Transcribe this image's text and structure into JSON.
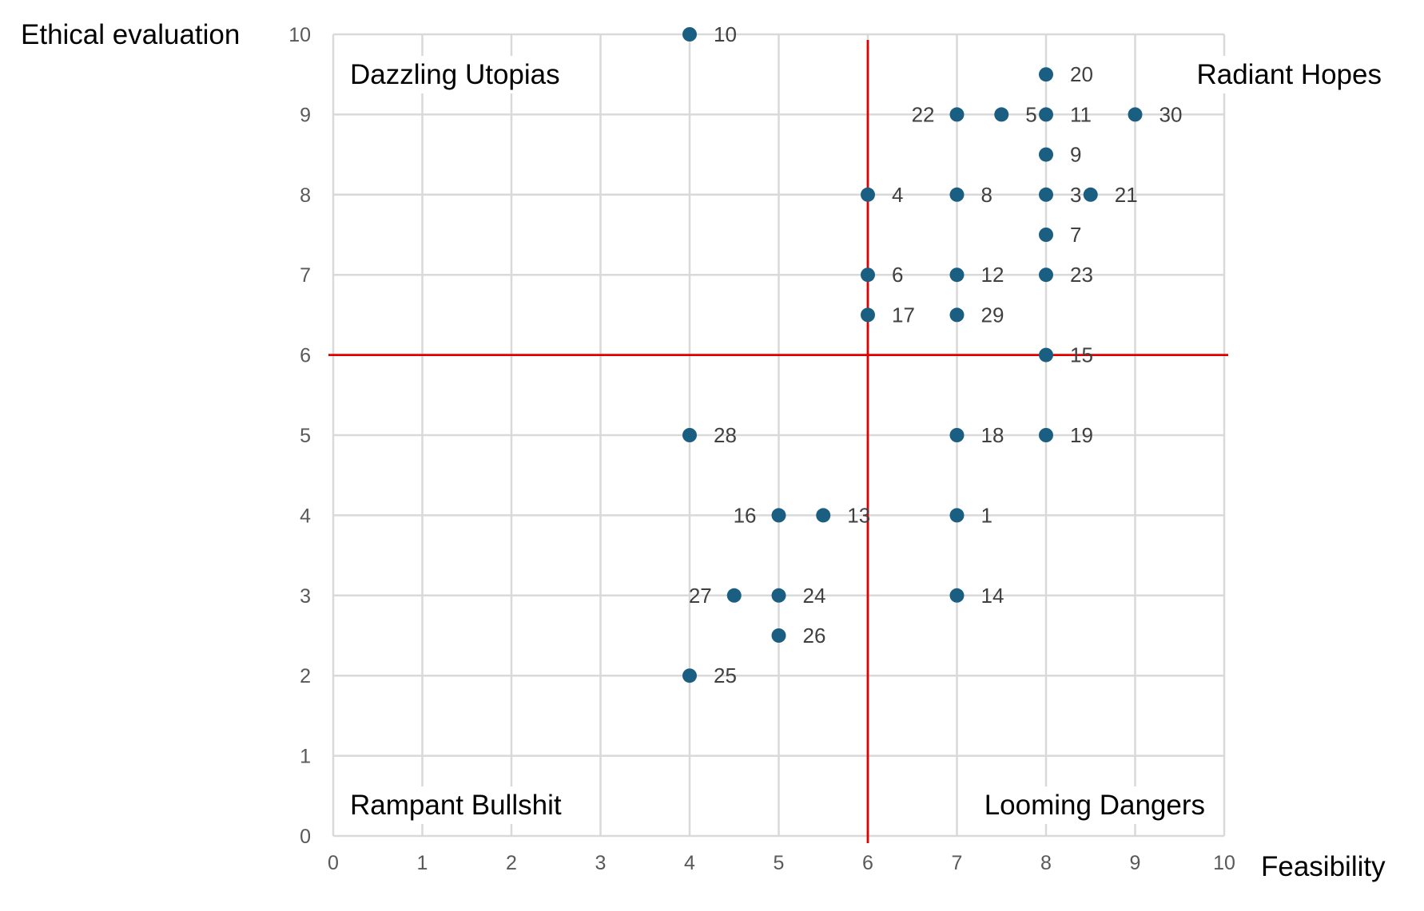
{
  "chart_data": {
    "type": "scatter",
    "xlabel": "Feasibility",
    "ylabel": "Ethical evaluation",
    "xlim": [
      0,
      10
    ],
    "ylim": [
      0,
      10
    ],
    "x_ticks": [
      "0",
      "1",
      "2",
      "3",
      "4",
      "5",
      "6",
      "7",
      "8",
      "9",
      "10"
    ],
    "y_ticks": [
      "0",
      "1",
      "2",
      "3",
      "4",
      "5",
      "6",
      "7",
      "8",
      "9",
      "10"
    ],
    "grid": true,
    "thresholds": {
      "x": 6,
      "y": 6,
      "color": "#e00000"
    },
    "quadrants": {
      "top_left": "Dazzling Utopias",
      "top_right": "Radiant Hopes",
      "bottom_left": "Rampant Bullshit",
      "bottom_right": "Looming Dangers"
    },
    "point_color": "#1a5f82",
    "points": [
      {
        "label": "1",
        "x": 7,
        "y": 4
      },
      {
        "label": "3",
        "x": 8,
        "y": 8
      },
      {
        "label": "4",
        "x": 6,
        "y": 8
      },
      {
        "label": "5",
        "x": 7.5,
        "y": 9
      },
      {
        "label": "6",
        "x": 6,
        "y": 7
      },
      {
        "label": "7",
        "x": 8,
        "y": 7.5
      },
      {
        "label": "8",
        "x": 7,
        "y": 8
      },
      {
        "label": "9",
        "x": 8,
        "y": 8.5
      },
      {
        "label": "10",
        "x": 4,
        "y": 10
      },
      {
        "label": "11",
        "x": 8,
        "y": 9
      },
      {
        "label": "12",
        "x": 7,
        "y": 7
      },
      {
        "label": "13",
        "x": 5.5,
        "y": 4
      },
      {
        "label": "14",
        "x": 7,
        "y": 3
      },
      {
        "label": "15",
        "x": 8,
        "y": 6
      },
      {
        "label": "16",
        "x": 5,
        "y": 4
      },
      {
        "label": "17",
        "x": 6,
        "y": 6.5
      },
      {
        "label": "18",
        "x": 7,
        "y": 5
      },
      {
        "label": "19",
        "x": 8,
        "y": 5
      },
      {
        "label": "20",
        "x": 8,
        "y": 9.5
      },
      {
        "label": "21",
        "x": 8.5,
        "y": 8
      },
      {
        "label": "22",
        "x": 7,
        "y": 9
      },
      {
        "label": "23",
        "x": 8,
        "y": 7
      },
      {
        "label": "24",
        "x": 5,
        "y": 3
      },
      {
        "label": "25",
        "x": 4,
        "y": 2
      },
      {
        "label": "26",
        "x": 5,
        "y": 2.5
      },
      {
        "label": "27",
        "x": 4.5,
        "y": 3
      },
      {
        "label": "28",
        "x": 4,
        "y": 5
      },
      {
        "label": "29",
        "x": 7,
        "y": 6.5
      },
      {
        "label": "30",
        "x": 9,
        "y": 9
      }
    ]
  }
}
